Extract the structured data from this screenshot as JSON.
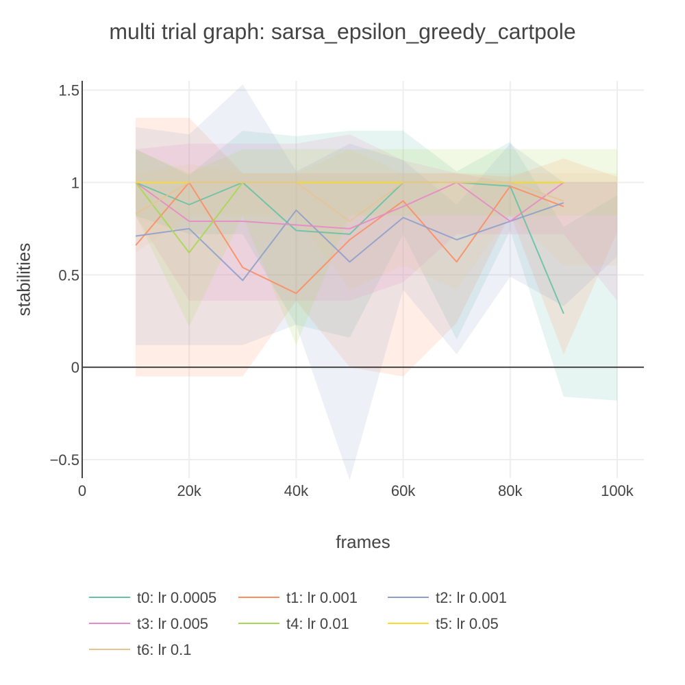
{
  "chart_data": {
    "type": "line",
    "title": "multi trial graph: sarsa_epsilon_greedy_cartpole",
    "xlabel": "frames",
    "ylabel": "stabilities",
    "xlim": [
      0,
      105000
    ],
    "ylim": [
      -0.6,
      1.55
    ],
    "x_ticks": [
      0,
      20000,
      40000,
      60000,
      80000,
      100000
    ],
    "x_tick_labels": [
      "0",
      "20k",
      "40k",
      "60k",
      "80k",
      "100k"
    ],
    "y_ticks": [
      -0.5,
      0,
      0.5,
      1,
      1.5
    ],
    "y_tick_labels": [
      "−0.5",
      "0",
      "0.5",
      "1",
      "1.5"
    ],
    "grid": true,
    "legend_position": "bottom",
    "shaded_bands": true,
    "x": [
      10000,
      20000,
      30000,
      40000,
      50000,
      60000,
      70000,
      80000,
      90000,
      100000
    ],
    "series": [
      {
        "name": "t0: lr 0.0005",
        "color": "#66c2a5",
        "values": [
          1.0,
          0.88,
          1.0,
          0.74,
          0.72,
          1.0,
          1.0,
          0.98,
          0.29,
          null
        ],
        "lower": [
          0.82,
          0.72,
          0.72,
          0.23,
          0.16,
          0.72,
          0.15,
          0.74,
          -0.16,
          -0.18
        ],
        "upper": [
          1.18,
          1.04,
          1.28,
          1.25,
          1.28,
          1.28,
          1.06,
          1.22,
          0.76,
          0.93
        ]
      },
      {
        "name": "t1: lr 0.001",
        "color": "#fc8d62",
        "values": [
          0.66,
          1.0,
          0.54,
          0.4,
          0.69,
          0.9,
          0.57,
          0.98,
          0.87,
          null
        ],
        "lower": [
          -0.05,
          -0.05,
          -0.05,
          0.36,
          0.0,
          -0.05,
          0.24,
          0.83,
          0.07,
          0.73
        ],
        "upper": [
          1.35,
          1.35,
          1.05,
          1.05,
          1.05,
          1.05,
          1.05,
          1.03,
          1.13,
          1.03
        ]
      },
      {
        "name": "t2: lr 0.001",
        "color": "#8da0cb",
        "values": [
          0.71,
          0.75,
          0.47,
          0.85,
          0.57,
          0.81,
          0.69,
          0.79,
          0.89,
          null
        ],
        "lower": [
          0.12,
          0.12,
          0.12,
          0.23,
          -0.61,
          0.42,
          0.07,
          0.49,
          0.33,
          0.6
        ],
        "upper": [
          1.3,
          1.26,
          1.53,
          1.06,
          1.21,
          1.12,
          0.88,
          1.21,
          1.0,
          1.0
        ]
      },
      {
        "name": "t3: lr 0.005",
        "color": "#e78ac3",
        "values": [
          1.0,
          0.79,
          0.79,
          0.77,
          0.75,
          0.87,
          1.0,
          0.79,
          1.0,
          null
        ],
        "lower": [
          0.82,
          0.36,
          0.36,
          0.36,
          0.36,
          0.46,
          0.72,
          0.72,
          0.72,
          0.36
        ],
        "upper": [
          1.18,
          1.21,
          1.21,
          1.21,
          1.26,
          1.12,
          1.05,
          1.0,
          1.0,
          1.0
        ]
      },
      {
        "name": "t4: lr 0.01",
        "color": "#a6d854",
        "values": [
          1.0,
          0.62,
          1.0,
          1.0,
          1.0,
          1.0,
          1.0,
          1.0,
          1.0,
          null
        ],
        "lower": [
          0.82,
          0.22,
          0.82,
          0.12,
          0.82,
          0.82,
          0.82,
          0.82,
          0.82,
          0.82
        ],
        "upper": [
          1.18,
          1.05,
          1.18,
          1.18,
          1.18,
          1.18,
          1.18,
          1.18,
          1.18,
          1.18
        ]
      },
      {
        "name": "t5: lr 0.05",
        "color": "#ffd92f",
        "values": [
          1.0,
          1.0,
          1.0,
          1.0,
          1.0,
          1.0,
          1.0,
          1.0,
          1.0,
          null
        ],
        "lower": [
          1.0,
          1.0,
          1.0,
          1.0,
          1.0,
          1.0,
          1.0,
          1.0,
          1.0,
          1.0
        ],
        "upper": [
          1.0,
          1.0,
          1.0,
          1.0,
          1.0,
          1.0,
          1.0,
          1.0,
          1.0,
          1.0
        ]
      },
      {
        "name": "t6: lr 0.1",
        "color": "#e5c494",
        "values": [
          0.83,
          1.0,
          1.0,
          1.0,
          0.79,
          1.0,
          1.0,
          1.0,
          0.9,
          null
        ],
        "lower": [
          0.62,
          0.82,
          0.82,
          0.82,
          0.42,
          0.55,
          0.42,
          0.82,
          0.55,
          0.55
        ],
        "upper": [
          1.05,
          1.1,
          1.05,
          1.05,
          1.18,
          1.05,
          1.05,
          1.05,
          1.05,
          1.05
        ]
      }
    ]
  }
}
